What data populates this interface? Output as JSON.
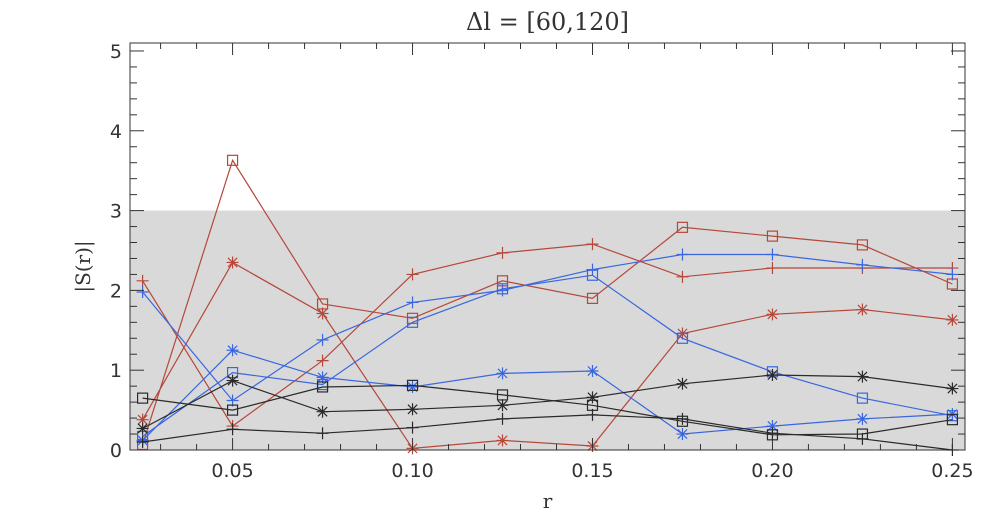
{
  "chart_data": {
    "type": "line",
    "title": "Δl = [60,120]",
    "xlabel": "r",
    "ylabel": "|S(r)|",
    "xlim": [
      0.0215,
      0.2535
    ],
    "ylim": [
      0,
      5.1
    ],
    "xticks": [
      0.05,
      0.1,
      0.15,
      0.2,
      0.25
    ],
    "xtick_labels": [
      "0.05",
      "0.10",
      "0.15",
      "0.20",
      "0.25"
    ],
    "yticks": [
      0,
      1,
      2,
      3,
      4,
      5
    ],
    "ytick_labels": [
      "0",
      "1",
      "2",
      "3",
      "4",
      "5"
    ],
    "shaded_band": [
      0,
      3
    ],
    "band_color": "#d9d9d9",
    "grid": false,
    "x": [
      0.025,
      0.05,
      0.075,
      0.1,
      0.125,
      0.15,
      0.175,
      0.2,
      0.225,
      0.25
    ],
    "series": [
      {
        "color": "#b5483a",
        "marker": "plus",
        "values": [
          2.12,
          0.3,
          1.12,
          2.2,
          2.47,
          2.58,
          2.17,
          2.28,
          2.28,
          2.28
        ]
      },
      {
        "color": "#b5483a",
        "marker": "square",
        "values": [
          0.07,
          3.63,
          1.83,
          1.65,
          2.12,
          1.9,
          2.79,
          2.68,
          2.57,
          2.08
        ]
      },
      {
        "color": "#b5483a",
        "marker": "asterisk",
        "values": [
          0.38,
          2.35,
          1.71,
          0.02,
          0.12,
          0.05,
          1.46,
          1.7,
          1.76,
          1.63
        ]
      },
      {
        "color": "#3a67e0",
        "marker": "plus",
        "values": [
          1.98,
          0.62,
          1.38,
          1.85,
          2.0,
          2.26,
          2.45,
          2.45,
          2.32,
          2.2
        ]
      },
      {
        "color": "#3a67e0",
        "marker": "square",
        "values": [
          0.17,
          0.97,
          0.82,
          1.6,
          2.02,
          2.19,
          1.4,
          0.98,
          0.65,
          0.43
        ]
      },
      {
        "color": "#3a67e0",
        "marker": "asterisk",
        "values": [
          0.12,
          1.25,
          0.91,
          0.79,
          0.96,
          0.99,
          0.2,
          0.3,
          0.39,
          0.45
        ]
      },
      {
        "color": "#2a2a2a",
        "marker": "plus",
        "values": [
          0.1,
          0.26,
          0.21,
          0.28,
          0.39,
          0.44,
          0.39,
          0.21,
          0.14,
          0.0
        ]
      },
      {
        "color": "#2a2a2a",
        "marker": "square",
        "values": [
          0.65,
          0.5,
          0.79,
          0.81,
          0.69,
          0.56,
          0.36,
          0.19,
          0.2,
          0.38
        ]
      },
      {
        "color": "#2a2a2a",
        "marker": "asterisk",
        "values": [
          0.27,
          0.87,
          0.48,
          0.51,
          0.56,
          0.66,
          0.83,
          0.94,
          0.92,
          0.77
        ]
      }
    ]
  }
}
